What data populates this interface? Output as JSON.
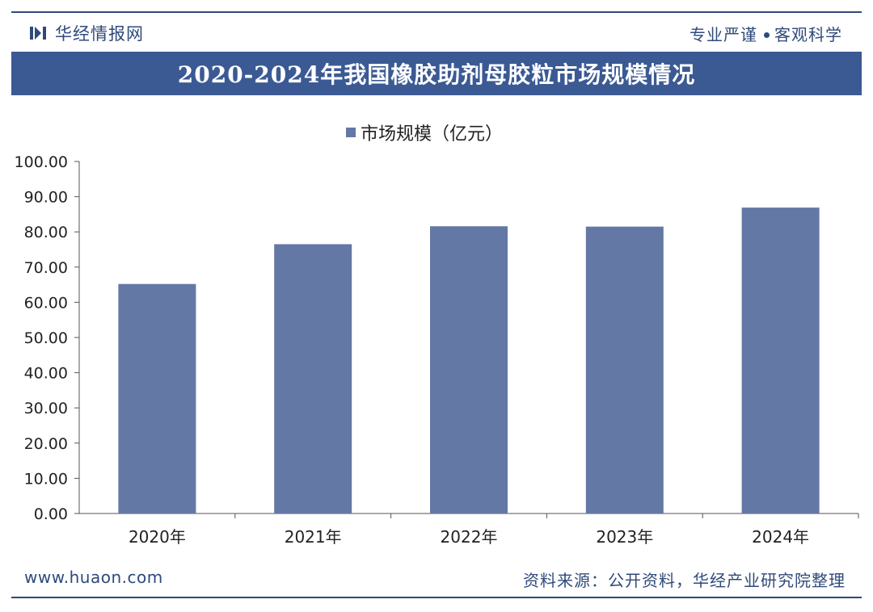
{
  "header": {
    "brand_name": "华经情报网",
    "slogan_left": "专业严谨",
    "slogan_right": "客观科学"
  },
  "colors": {
    "accent": "#3b5a94",
    "bar": "#6478a6",
    "text": "#222222"
  },
  "chart_data": {
    "type": "bar",
    "title": "2020-2024年我国橡胶助剂母胶粒市场规模情况",
    "categories": [
      "2020年",
      "2021年",
      "2022年",
      "2023年",
      "2024年"
    ],
    "series": [
      {
        "name": "市场规模（亿元）",
        "values": [
          65.2,
          76.5,
          81.6,
          81.5,
          86.9
        ]
      }
    ],
    "yticks": [
      "0.00",
      "10.00",
      "20.00",
      "30.00",
      "40.00",
      "50.00",
      "60.00",
      "70.00",
      "80.00",
      "90.00",
      "100.00"
    ],
    "ylim": [
      0,
      100
    ],
    "xlabel": "",
    "ylabel": "",
    "grid": false,
    "legend_position": "top-center"
  },
  "footer": {
    "website": "www.huaon.com",
    "source": "资料来源：公开资料，华经产业研究院整理"
  }
}
